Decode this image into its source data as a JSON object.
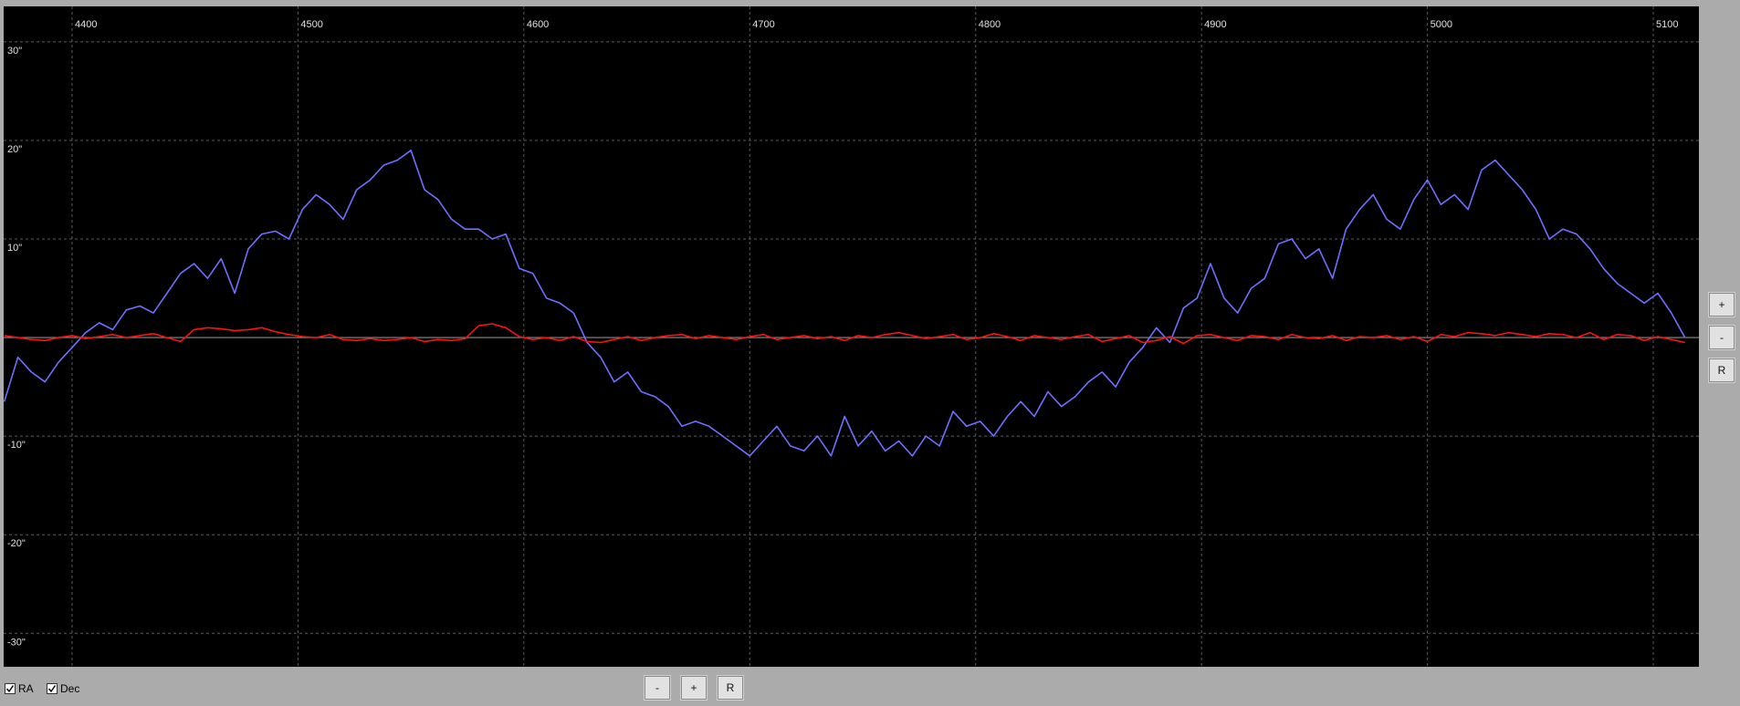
{
  "chart_data": {
    "type": "line",
    "xlim": [
      4369.7,
      5120.2
    ],
    "xticks": [
      4400,
      4500,
      4600,
      4700,
      4800,
      4900,
      5000,
      5100
    ],
    "ylim": [
      -33.4,
      33.6
    ],
    "yticks": [
      {
        "value": 30,
        "label": "30\""
      },
      {
        "value": 20,
        "label": "20\""
      },
      {
        "value": 10,
        "label": "10\""
      },
      {
        "value": -10,
        "label": "-10\""
      },
      {
        "value": -20,
        "label": "-20\""
      },
      {
        "value": -30,
        "label": "-30\""
      }
    ],
    "grid": true,
    "x": [
      4370,
      4376,
      4382,
      4388,
      4394,
      4400,
      4406,
      4412,
      4418,
      4424,
      4430,
      4436,
      4442,
      4448,
      4454,
      4460,
      4466,
      4472,
      4478,
      4484,
      4490,
      4496,
      4502,
      4508,
      4514,
      4520,
      4526,
      4532,
      4538,
      4544,
      4550,
      4556,
      4562,
      4568,
      4574,
      4580,
      4586,
      4592,
      4598,
      4604,
      4610,
      4616,
      4622,
      4628,
      4634,
      4640,
      4646,
      4652,
      4658,
      4664,
      4670,
      4676,
      4682,
      4688,
      4694,
      4700,
      4706,
      4712,
      4718,
      4724,
      4730,
      4736,
      4742,
      4748,
      4754,
      4760,
      4766,
      4772,
      4778,
      4784,
      4790,
      4796,
      4802,
      4808,
      4814,
      4820,
      4826,
      4832,
      4838,
      4844,
      4850,
      4856,
      4862,
      4868,
      4874,
      4880,
      4886,
      4892,
      4898,
      4904,
      4910,
      4916,
      4922,
      4928,
      4934,
      4940,
      4946,
      4952,
      4958,
      4964,
      4970,
      4976,
      4982,
      4988,
      4994,
      5000,
      5006,
      5012,
      5018,
      5024,
      5030,
      5036,
      5042,
      5048,
      5054,
      5060,
      5066,
      5072,
      5078,
      5084,
      5090,
      5096,
      5102,
      5108,
      5114
    ],
    "series": [
      {
        "name": "RA",
        "color": "#6f6fff",
        "visible": true,
        "values": [
          -6.5,
          -2,
          -3.5,
          -4.5,
          -2.5,
          -1,
          0.5,
          1.5,
          0.8,
          2.8,
          3.2,
          2.5,
          4.5,
          6.5,
          7.5,
          6,
          8,
          4.5,
          9,
          10.5,
          10.8,
          10,
          13,
          14.5,
          13.5,
          12,
          15,
          16,
          17.5,
          18,
          19,
          15,
          14,
          12,
          11,
          11,
          10,
          10.5,
          7,
          6.5,
          4,
          3.5,
          2.5,
          -0.5,
          -2,
          -4.5,
          -3.5,
          -5.5,
          -6,
          -7,
          -9,
          -8.5,
          -9,
          -10,
          -11,
          -12,
          -10.5,
          -9,
          -11,
          -11.5,
          -10,
          -12,
          -8,
          -11,
          -9.5,
          -11.5,
          -10.5,
          -12,
          -10,
          -11,
          -7.5,
          -9,
          -8.5,
          -10,
          -8,
          -6.5,
          -8,
          -5.5,
          -7,
          -6,
          -4.5,
          -3.5,
          -5,
          -2.5,
          -1,
          1,
          -0.5,
          3,
          4,
          7.5,
          4,
          2.5,
          5,
          6,
          9.5,
          10,
          8,
          9,
          6,
          11,
          13,
          14.5,
          12,
          11,
          14,
          16,
          13.5,
          14.5,
          13,
          17,
          18,
          16.5,
          15,
          13,
          10,
          11,
          10.5,
          9,
          7,
          5.5,
          4.5,
          3.5,
          4.5,
          2.5,
          0
        ]
      },
      {
        "name": "Dec",
        "color": "#ff1010",
        "visible": true,
        "values": [
          0.2,
          0,
          -0.2,
          -0.3,
          0,
          0.2,
          -0.1,
          0.1,
          0.3,
          0,
          0.2,
          0.4,
          0,
          -0.4,
          0.8,
          1,
          0.9,
          0.7,
          0.8,
          1,
          0.6,
          0.3,
          0.1,
          0,
          0.3,
          -0.2,
          -0.3,
          -0.1,
          -0.3,
          -0.2,
          0,
          -0.4,
          -0.2,
          -0.3,
          -0.1,
          1.2,
          1.4,
          1,
          0.1,
          -0.2,
          0,
          -0.3,
          0.1,
          -0.4,
          -0.5,
          -0.2,
          0.1,
          -0.3,
          0,
          0.2,
          0.3,
          -0.1,
          0.2,
          0,
          -0.2,
          0.1,
          0.3,
          -0.2,
          0,
          0.2,
          -0.1,
          0.1,
          -0.3,
          0.2,
          0,
          0.3,
          0.5,
          0.2,
          -0.1,
          0.1,
          0.3,
          -0.2,
          0,
          0.4,
          0.1,
          -0.3,
          0.2,
          0,
          -0.2,
          0.1,
          0.3,
          -0.4,
          -0.1,
          0.2,
          -0.5,
          -0.3,
          0.1,
          -0.6,
          0.2,
          0.3,
          0,
          -0.3,
          0.2,
          0.1,
          -0.2,
          0.3,
          0,
          -0.1,
          0.2,
          -0.3,
          0.1,
          0,
          0.2,
          -0.2,
          0.1,
          -0.4,
          0.3,
          0.1,
          0.5,
          0.4,
          0.2,
          0.5,
          0.3,
          0.1,
          0.4,
          0.3,
          0,
          0.5,
          -0.2,
          0.3,
          0.2,
          -0.3,
          0.1,
          -0.2,
          -0.5
        ]
      }
    ]
  },
  "ui": {
    "side_buttons": [
      "+",
      "-",
      "R"
    ],
    "bottom_buttons": [
      "-",
      "+",
      "R"
    ]
  }
}
